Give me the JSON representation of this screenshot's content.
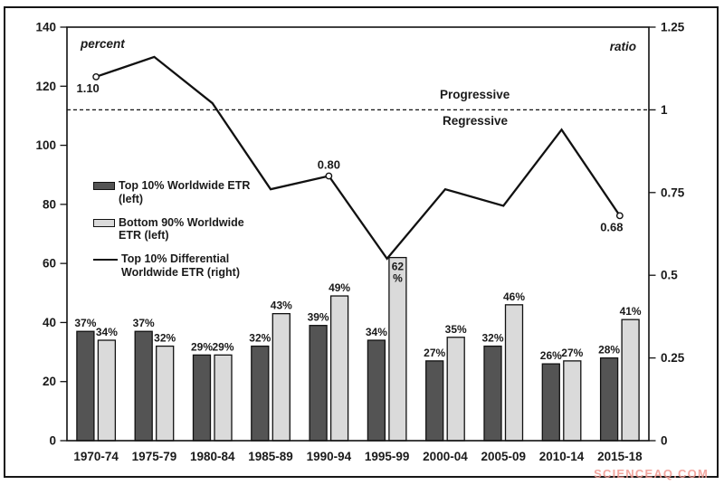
{
  "chart_data": {
    "type": "bar+line",
    "categories": [
      "1970-74",
      "1975-79",
      "1980-84",
      "1985-89",
      "1990-94",
      "1995-99",
      "2000-04",
      "2005-09",
      "2010-14",
      "2015-18"
    ],
    "bar_series": [
      {
        "name": "Top 10% Worldwide ETR (left)",
        "color": "#545454",
        "values": [
          37,
          37,
          29,
          32,
          39,
          34,
          27,
          32,
          26,
          28
        ],
        "labels": [
          "37%",
          "37%",
          "29%",
          "32%",
          "39%",
          "34%",
          "27%",
          "32%",
          "26%",
          "28%"
        ],
        "inside_label_indices": []
      },
      {
        "name": "Bottom 90% Worldwide ETR (left)",
        "color": "#dadada",
        "values": [
          34,
          32,
          29,
          43,
          49,
          62,
          35,
          46,
          27,
          41
        ],
        "labels": [
          "34%",
          "32%",
          "29%",
          "43%",
          "49%",
          "62%",
          "35%",
          "46%",
          "27%",
          "41%"
        ],
        "inside_label_indices": [
          5
        ]
      }
    ],
    "line_series": {
      "name": "Top 10% Differential Worldwide ETR (right)",
      "color": "#111111",
      "values": [
        1.1,
        1.16,
        1.02,
        0.76,
        0.8,
        0.55,
        0.76,
        0.71,
        0.94,
        0.68
      ],
      "point_labels": [
        {
          "index": 0,
          "text": "1.10",
          "position": "below"
        },
        {
          "index": 4,
          "text": "0.80",
          "position": "above"
        },
        {
          "index": 9,
          "text": "0.68",
          "position": "below"
        }
      ],
      "marker_indices": [
        0,
        4,
        9
      ]
    },
    "left_axis": {
      "title": "percent",
      "min": 0,
      "max": 140,
      "ticks": [
        "0",
        "20",
        "40",
        "60",
        "80",
        "100",
        "120",
        "140"
      ]
    },
    "right_axis": {
      "title": "ratio",
      "min": 0,
      "max": 1.25,
      "ticks": [
        "0",
        "0.25",
        "0.5",
        "0.75",
        "1",
        "1.25"
      ]
    },
    "reference_line": {
      "value": 1,
      "axis": "right",
      "style": "dashed",
      "label_above": "Progressive",
      "label_below": "Regressive"
    },
    "legend_position": "inside-left",
    "grid": "off"
  },
  "legend": {
    "items": [
      {
        "swatch": "bar-dark",
        "lines": [
          "Top 10% Worldwide ETR",
          "(left)"
        ]
      },
      {
        "swatch": "bar-light",
        "lines": [
          "Bottom 90% Worldwide",
          "ETR (left)"
        ]
      },
      {
        "swatch": "line",
        "lines": [
          "Top 10% Differential",
          "Worldwide ETR (right)"
        ]
      }
    ]
  },
  "watermark": {
    "text": "SCIENCEAQ.COM",
    "color": "#f0968e"
  }
}
